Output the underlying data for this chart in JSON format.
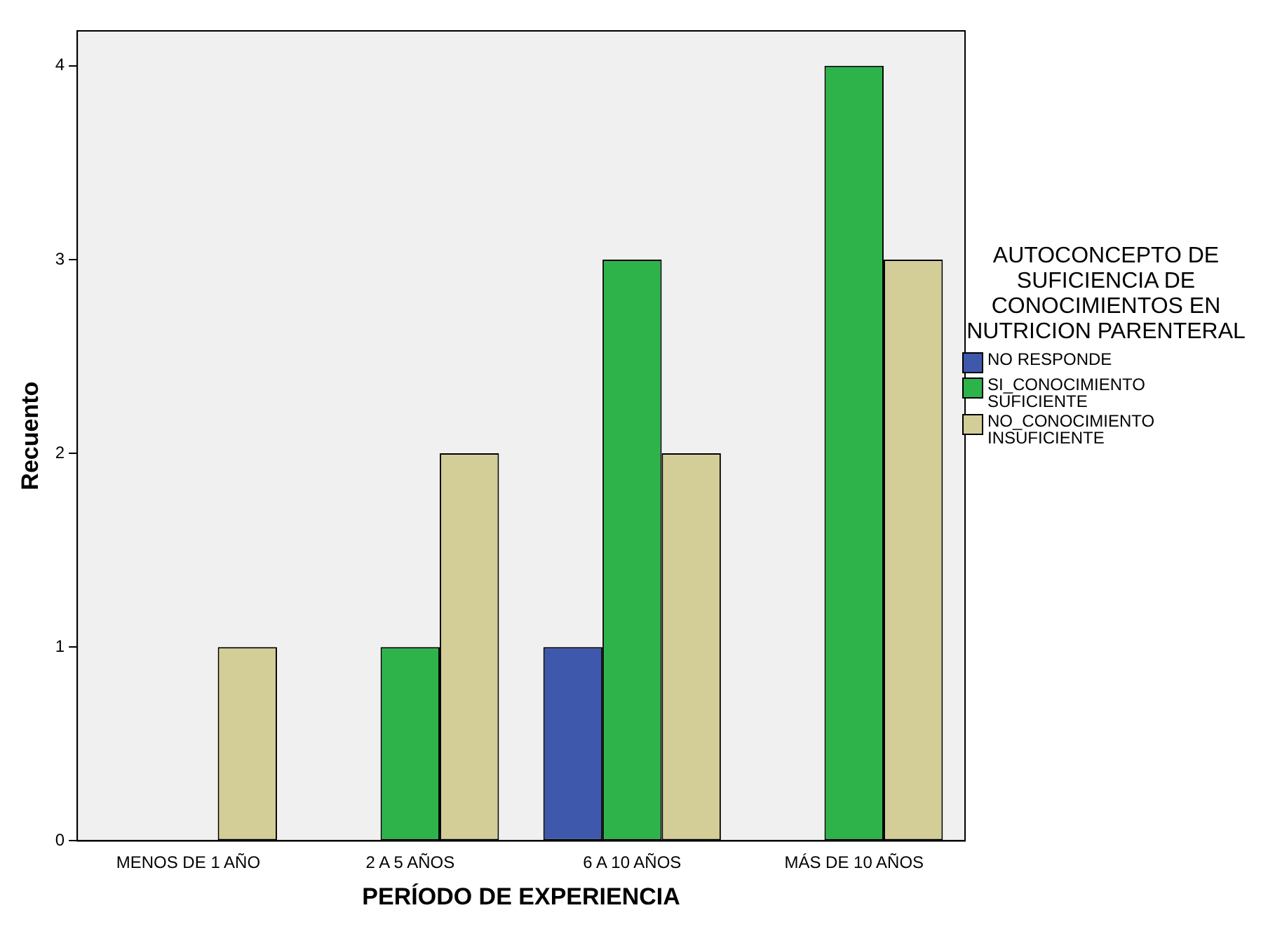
{
  "chart_data": {
    "type": "bar",
    "xlabel": "PERÍODO DE EXPERIENCIA",
    "ylabel": "Recuento",
    "legend_title": "AUTOCONCEPTO DE SUFICIENCIA DE CONOCIMIENTOS EN NUTRICION PARENTERAL",
    "legend": "right",
    "grid": false,
    "categories": [
      "MENOS DE 1 AÑO",
      "2 A 5 AÑOS",
      "6 A 10 AÑOS",
      "MÁS DE 10 AÑOS"
    ],
    "series": [
      {
        "name": "NO RESPONDE",
        "color": "#3e58ac",
        "values": [
          0,
          0,
          1,
          0
        ]
      },
      {
        "name": "SI_CONOCIMIENTO SUFICIENTE",
        "color": "#2db34a",
        "values": [
          0,
          1,
          3,
          4
        ]
      },
      {
        "name": "NO_CONOCIMIENTO INSUFICIENTE",
        "color": "#d3ce97",
        "values": [
          1,
          2,
          2,
          3
        ]
      }
    ],
    "ylim": [
      0,
      4.18
    ],
    "yticks": [
      0,
      1,
      2,
      3,
      4
    ]
  }
}
